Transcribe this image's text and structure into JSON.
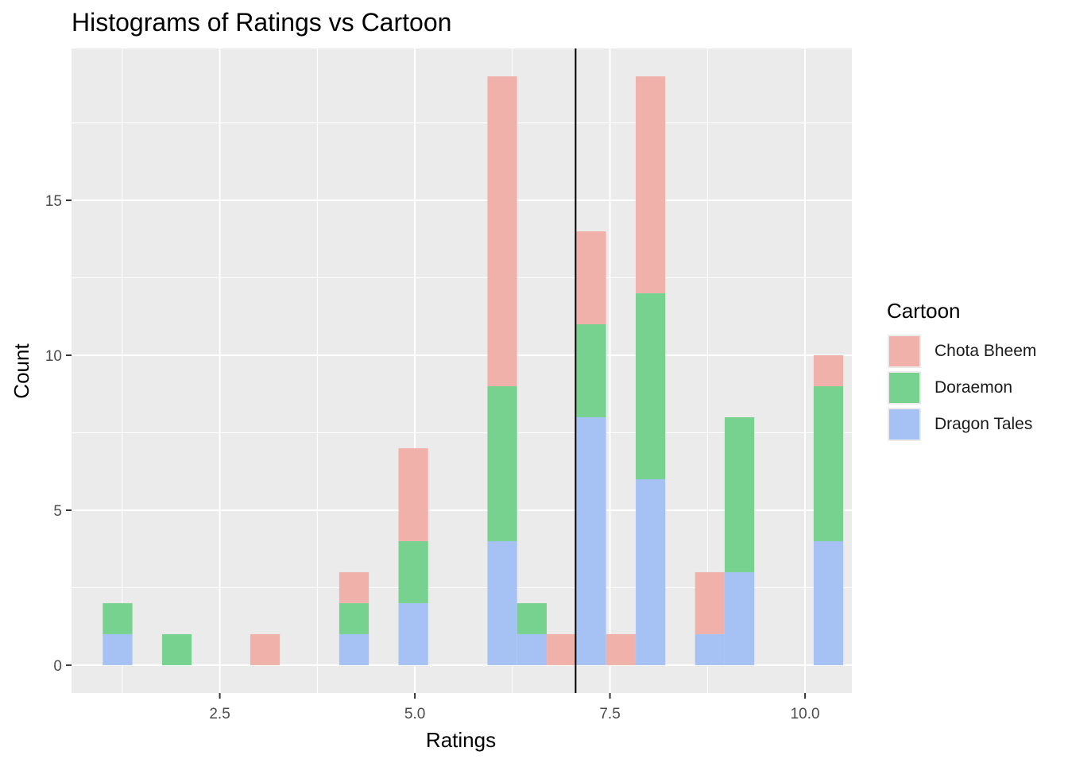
{
  "chart_data": {
    "type": "bar",
    "stacked": true,
    "title": "Histograms of Ratings vs Cartoon",
    "xlabel": "Ratings",
    "ylabel": "Count",
    "xlim": [
      0.6,
      10.6
    ],
    "ylim": [
      -0.9,
      19.9
    ],
    "x_ticks": [
      2.5,
      5.0,
      7.5,
      10.0
    ],
    "x_tick_labels": [
      "2.5",
      "5.0",
      "7.5",
      "10.0"
    ],
    "y_ticks": [
      0,
      5,
      10,
      15
    ],
    "y_tick_labels": [
      "0",
      "5",
      "10",
      "15"
    ],
    "bin_width": 0.3793,
    "bin_centers": [
      1.19,
      1.95,
      3.08,
      4.22,
      4.98,
      6.12,
      6.5,
      6.88,
      7.26,
      7.64,
      8.02,
      8.78,
      9.16,
      10.3
    ],
    "series": [
      {
        "name": "Dragon Tales",
        "color": "#a6c2f4",
        "values": [
          1,
          0,
          0,
          1,
          2,
          4,
          1,
          0,
          8,
          0,
          6,
          1,
          3,
          4
        ]
      },
      {
        "name": "Doraemon",
        "color": "#77d28f",
        "values": [
          1,
          1,
          0,
          1,
          2,
          5,
          1,
          0,
          3,
          0,
          6,
          0,
          5,
          5
        ]
      },
      {
        "name": "Chota Bheem",
        "color": "#f1b1ab",
        "values": [
          0,
          0,
          1,
          1,
          3,
          10,
          0,
          1,
          3,
          1,
          7,
          2,
          0,
          1
        ]
      }
    ],
    "vline_x": 7.06,
    "grid": true,
    "legend": {
      "title": "Cartoon",
      "position": "right",
      "entries": [
        {
          "name": "Chota Bheem",
          "color": "#f1b1ab"
        },
        {
          "name": "Doraemon",
          "color": "#77d28f"
        },
        {
          "name": "Dragon Tales",
          "color": "#a6c2f4"
        }
      ]
    }
  }
}
